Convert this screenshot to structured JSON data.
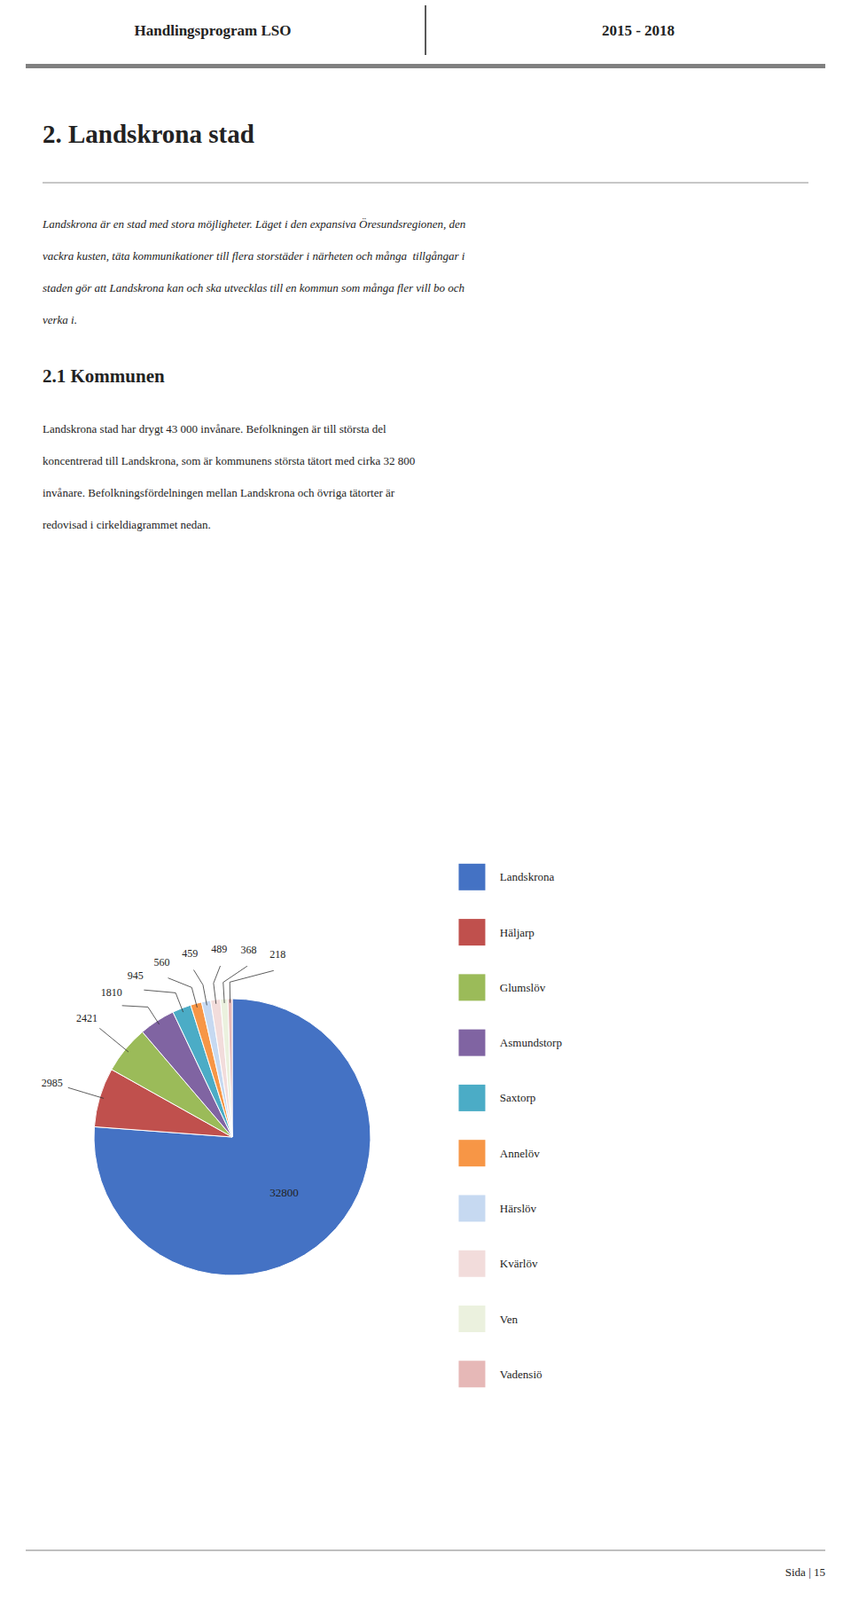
{
  "page": {
    "header_left": "Handlingsprogram LSO",
    "header_right": "2015 - 2018",
    "title": "2. Landskrona stad",
    "intro": [
      "Landskrona är en stad med stora möjligheter. Läget i den expansiva Öresundsregionen, den",
      "vackra kusten, täta kommunikationer till flera storstäder i närheten och många  tillgångar i",
      "staden gör att Landskrona kan och ska utvecklas till en kommun som många fler vill bo och",
      "verka i."
    ],
    "section_title": "2.1 Kommunen",
    "body": [
      "Landskrona stad har drygt 43 000 invånare. Befolkningen är till största del",
      "koncentrerad till Landskrona, som är kommunens största tätort med cirka 32 800",
      "invånare. Befolkningsfördelningen mellan Landskrona och övriga tätorter är",
      "redovisad i cirkeldiagrammet nedan."
    ],
    "footer": "Sida | 15"
  },
  "chart_data": {
    "type": "pie",
    "categories": [
      "Landskrona",
      "Häljarp",
      "Glumslöv",
      "Asmundstorp",
      "Saxtorp",
      "Annelöv",
      "Härslöv",
      "Kvärlöv",
      "Ven",
      "Vadensiö"
    ],
    "values": [
      32800,
      2985,
      2421,
      1810,
      945,
      560,
      459,
      489,
      368,
      218
    ],
    "colors": [
      "#4472C4",
      "#C0504D",
      "#9BBB59",
      "#8064A2",
      "#4BACC6",
      "#F79646",
      "#C6D9F1",
      "#F2DCDB",
      "#EBF1DE",
      "#E6B8B7"
    ],
    "data_labels": true,
    "legend": "right"
  }
}
